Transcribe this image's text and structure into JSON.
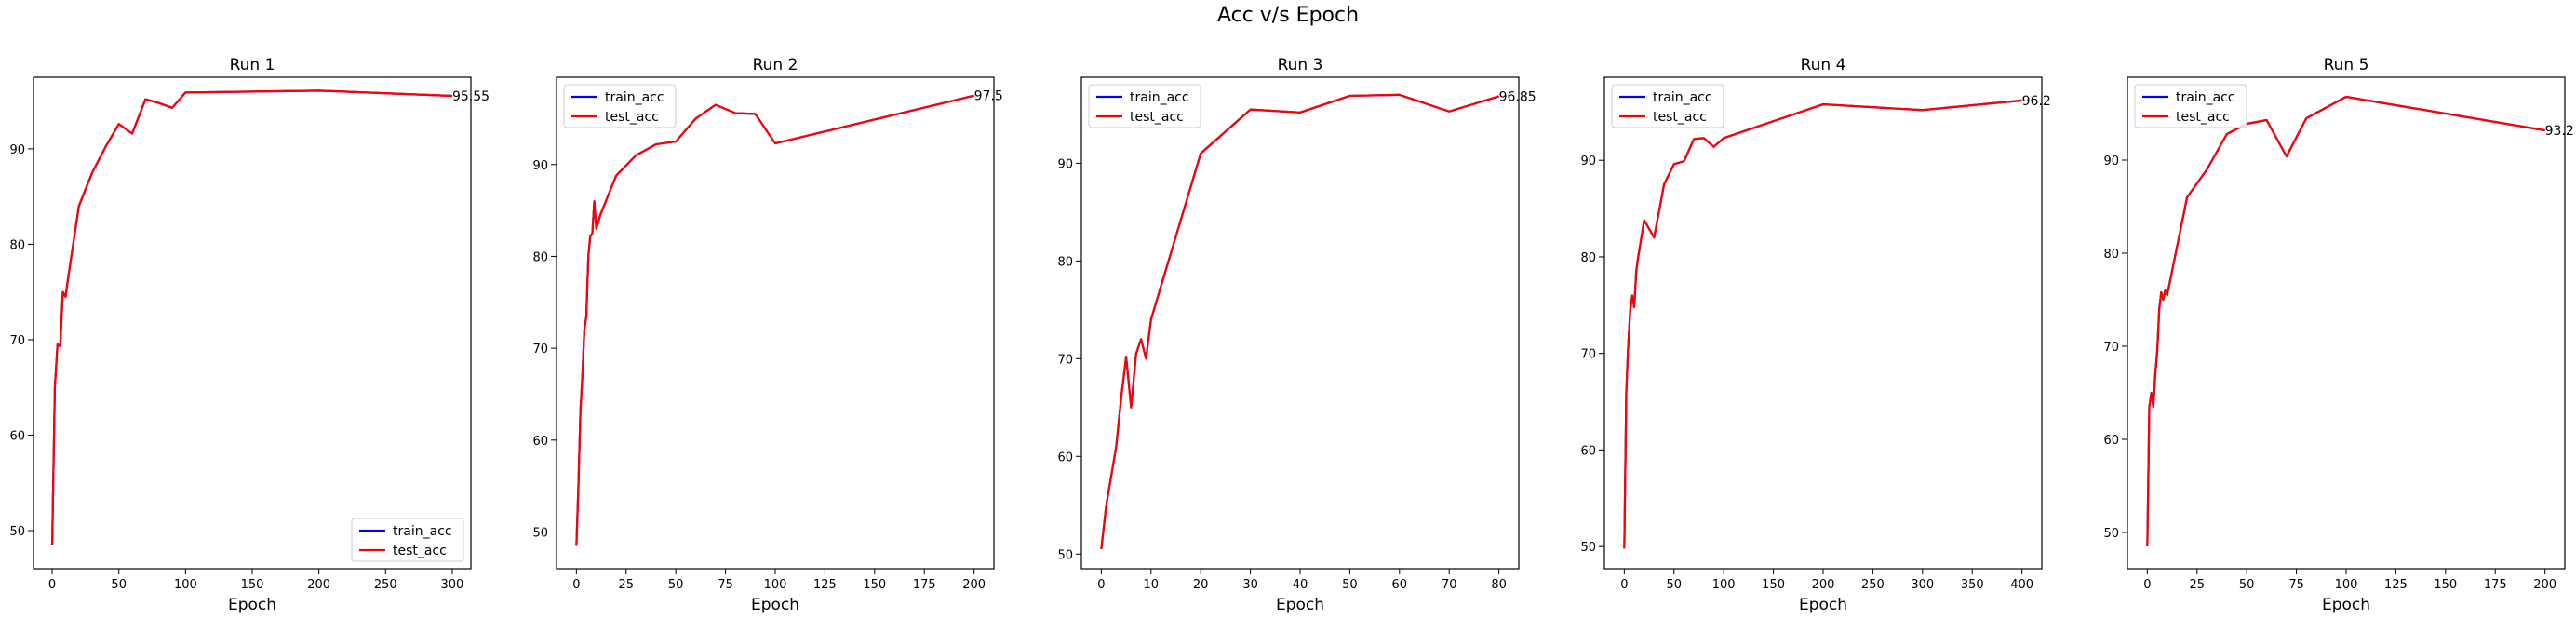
{
  "figure": {
    "suptitle": "Acc v/s Epoch"
  },
  "colors": {
    "train": "#0000ff",
    "test": "#ff0000",
    "axis": "#000000",
    "background": "#ffffff"
  },
  "chart_data": [
    {
      "type": "line",
      "title": "Run 1",
      "xlabel": "Epoch",
      "ylabel": "",
      "xlim": [
        -14,
        314
      ],
      "ylim": [
        46,
        97.5
      ],
      "xticks": [
        0,
        50,
        100,
        150,
        200,
        250,
        300
      ],
      "yticks": [
        50,
        60,
        70,
        80,
        90
      ],
      "legend": "lower-right",
      "grid": false,
      "final_label": "95.55",
      "series": [
        {
          "name": "train_acc",
          "x": [
            0,
            2,
            4,
            6,
            8,
            10,
            12,
            20,
            30,
            40,
            50,
            60,
            70,
            80,
            90,
            100,
            200,
            300
          ],
          "y": [
            48.5,
            65,
            69.5,
            69.3,
            75,
            74.5,
            76.5,
            84,
            87.5,
            90.2,
            92.6,
            91.6,
            95.2,
            94.8,
            94.3,
            95.9,
            96.1,
            95.55
          ]
        },
        {
          "name": "test_acc",
          "x": [
            0,
            2,
            4,
            6,
            8,
            10,
            12,
            20,
            30,
            40,
            50,
            60,
            70,
            80,
            90,
            100,
            200,
            300
          ],
          "y": [
            48.5,
            65,
            69.5,
            69.3,
            75,
            74.5,
            76.5,
            84,
            87.5,
            90.2,
            92.6,
            91.6,
            95.2,
            94.8,
            94.3,
            95.9,
            96.1,
            95.55
          ]
        }
      ]
    },
    {
      "type": "line",
      "title": "Run 2",
      "xlabel": "Epoch",
      "ylabel": "",
      "xlim": [
        -10,
        210
      ],
      "ylim": [
        46,
        99.5
      ],
      "xticks": [
        0,
        25,
        50,
        75,
        100,
        125,
        150,
        175,
        200
      ],
      "yticks": [
        50,
        60,
        70,
        80,
        90
      ],
      "legend": "top-left",
      "grid": false,
      "final_label": "97.5",
      "series": [
        {
          "name": "train_acc",
          "x": [
            0,
            1,
            2,
            3,
            4,
            5,
            6,
            7,
            8,
            9,
            10,
            12,
            20,
            30,
            40,
            50,
            60,
            70,
            80,
            90,
            100,
            200
          ],
          "y": [
            48.5,
            55,
            63,
            67,
            72,
            73.5,
            80,
            82.2,
            82.5,
            86,
            83,
            84.5,
            88.8,
            91,
            92.2,
            92.5,
            95,
            96.5,
            95.6,
            95.5,
            92.3,
            97.5
          ]
        },
        {
          "name": "test_acc",
          "x": [
            0,
            1,
            2,
            3,
            4,
            5,
            6,
            7,
            8,
            9,
            10,
            12,
            20,
            30,
            40,
            50,
            60,
            70,
            80,
            90,
            100,
            200
          ],
          "y": [
            48.5,
            55,
            63,
            67,
            72,
            73.5,
            80,
            82.2,
            82.5,
            86,
            83,
            84.5,
            88.8,
            91,
            92.2,
            92.5,
            95,
            96.5,
            95.6,
            95.5,
            92.3,
            97.5
          ]
        }
      ]
    },
    {
      "type": "line",
      "title": "Run 3",
      "xlabel": "Epoch",
      "ylabel": "",
      "xlim": [
        -4,
        84
      ],
      "ylim": [
        48.5,
        98.8
      ],
      "xticks": [
        0,
        10,
        20,
        30,
        40,
        50,
        60,
        70,
        80
      ],
      "yticks": [
        50,
        60,
        70,
        80,
        90
      ],
      "legend": "top-left",
      "grid": false,
      "final_label": "96.85",
      "series": [
        {
          "name": "train_acc",
          "x": [
            0,
            1,
            2,
            3,
            4,
            5,
            6,
            7,
            8,
            9,
            10,
            20,
            30,
            40,
            50,
            60,
            70,
            80
          ],
          "y": [
            50.5,
            55,
            58,
            61,
            66,
            70.2,
            65,
            70.5,
            72,
            70,
            74,
            91,
            95.5,
            95.2,
            96.9,
            97,
            95.3,
            96.85
          ]
        },
        {
          "name": "test_acc",
          "x": [
            0,
            1,
            2,
            3,
            4,
            5,
            6,
            7,
            8,
            9,
            10,
            20,
            30,
            40,
            50,
            60,
            70,
            80
          ],
          "y": [
            50.5,
            55,
            58,
            61,
            66,
            70.2,
            65,
            70.5,
            72,
            70,
            74,
            91,
            95.5,
            95.2,
            96.9,
            97,
            95.3,
            96.85
          ]
        }
      ]
    },
    {
      "type": "line",
      "title": "Run 4",
      "xlabel": "Epoch",
      "ylabel": "",
      "xlim": [
        -20,
        420
      ],
      "ylim": [
        47.7,
        98.6
      ],
      "xticks": [
        0,
        50,
        100,
        150,
        200,
        250,
        300,
        350,
        400
      ],
      "yticks": [
        50,
        60,
        70,
        80,
        90
      ],
      "legend": "top-left",
      "grid": false,
      "final_label": "96.2",
      "series": [
        {
          "name": "train_acc",
          "x": [
            0,
            2,
            4,
            6,
            8,
            10,
            12,
            14,
            20,
            30,
            40,
            50,
            60,
            70,
            80,
            90,
            100,
            200,
            300,
            400
          ],
          "y": [
            49.8,
            66,
            71,
            74.5,
            76,
            74.8,
            78.5,
            80,
            83.8,
            82,
            87.5,
            89.6,
            89.9,
            92.2,
            92.3,
            91.4,
            92.3,
            95.8,
            95.2,
            96.2
          ]
        },
        {
          "name": "test_acc",
          "x": [
            0,
            2,
            4,
            6,
            8,
            10,
            12,
            14,
            20,
            30,
            40,
            50,
            60,
            70,
            80,
            90,
            100,
            200,
            300,
            400
          ],
          "y": [
            49.8,
            66,
            71,
            74.5,
            76,
            74.8,
            78.5,
            80,
            83.8,
            82,
            87.5,
            89.6,
            89.9,
            92.2,
            92.3,
            91.4,
            92.3,
            95.8,
            95.2,
            96.2
          ]
        }
      ]
    },
    {
      "type": "line",
      "title": "Run 5",
      "xlabel": "Epoch",
      "ylabel": "",
      "xlim": [
        -10,
        210
      ],
      "ylim": [
        46.1,
        98.9
      ],
      "xticks": [
        0,
        25,
        50,
        75,
        100,
        125,
        150,
        175,
        200
      ],
      "yticks": [
        50,
        60,
        70,
        80,
        90
      ],
      "legend": "top-left",
      "grid": false,
      "final_label": "93.2",
      "series": [
        {
          "name": "train_acc",
          "x": [
            0,
            1,
            2,
            3,
            4,
            5,
            6,
            7,
            8,
            9,
            10,
            20,
            30,
            40,
            50,
            60,
            70,
            80,
            100,
            200
          ],
          "y": [
            48.5,
            63.5,
            65,
            63.5,
            67,
            69.5,
            74,
            75.8,
            75,
            76,
            75.5,
            86,
            89,
            92.8,
            93.9,
            94.3,
            90.4,
            94.5,
            96.8,
            93.2
          ]
        },
        {
          "name": "test_acc",
          "x": [
            0,
            1,
            2,
            3,
            4,
            5,
            6,
            7,
            8,
            9,
            10,
            20,
            30,
            40,
            50,
            60,
            70,
            80,
            100,
            200
          ],
          "y": [
            48.5,
            63.5,
            65,
            63.5,
            67,
            69.5,
            74,
            75.8,
            75,
            76,
            75.5,
            86,
            89,
            92.8,
            93.9,
            94.3,
            90.4,
            94.5,
            96.8,
            93.2
          ]
        }
      ]
    }
  ]
}
